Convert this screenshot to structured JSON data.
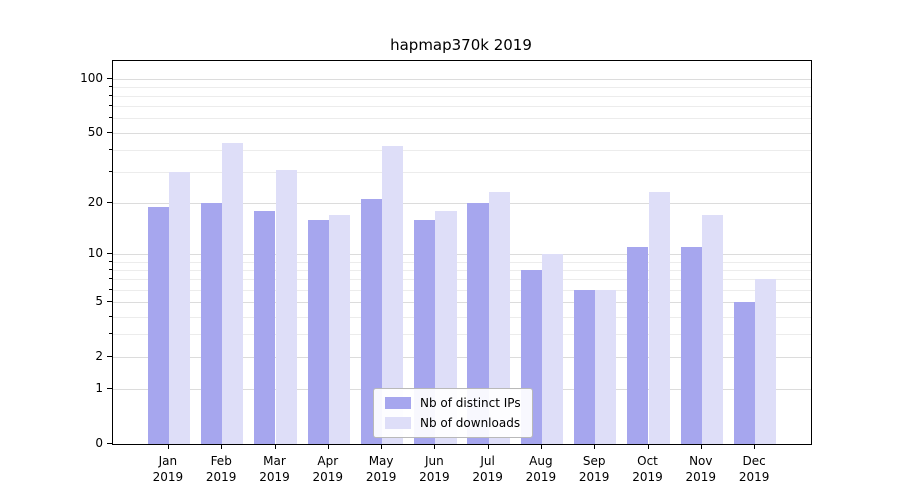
{
  "title": "hapmap370k 2019",
  "chart_data": {
    "type": "bar",
    "title": "hapmap370k 2019",
    "scale": "log1p",
    "grid": "on",
    "legend_position": "lower center",
    "categories": [
      "Jan 2019",
      "Feb 2019",
      "Mar 2019",
      "Apr 2019",
      "May 2019",
      "Jun 2019",
      "Jul 2019",
      "Aug 2019",
      "Sep 2019",
      "Oct 2019",
      "Nov 2019",
      "Dec 2019"
    ],
    "series": [
      {
        "name": "Nb of distinct IPs",
        "color": "#a6a6ee",
        "values": [
          19,
          20,
          18,
          16,
          21,
          16,
          20,
          8,
          6,
          11,
          11,
          5
        ]
      },
      {
        "name": "Nb of downloads",
        "color": "#dedef8",
        "values": [
          30,
          44,
          31,
          17,
          42,
          18,
          23,
          10,
          6,
          23,
          17,
          7
        ]
      }
    ],
    "xlabel": "",
    "ylabel": "",
    "y_ticks": [
      0,
      1,
      2,
      5,
      10,
      20,
      50,
      100
    ],
    "y_minor_ticks": [
      3,
      4,
      6,
      7,
      8,
      9,
      30,
      40,
      60,
      70,
      80,
      90
    ],
    "ylim": [
      0,
      125
    ]
  }
}
